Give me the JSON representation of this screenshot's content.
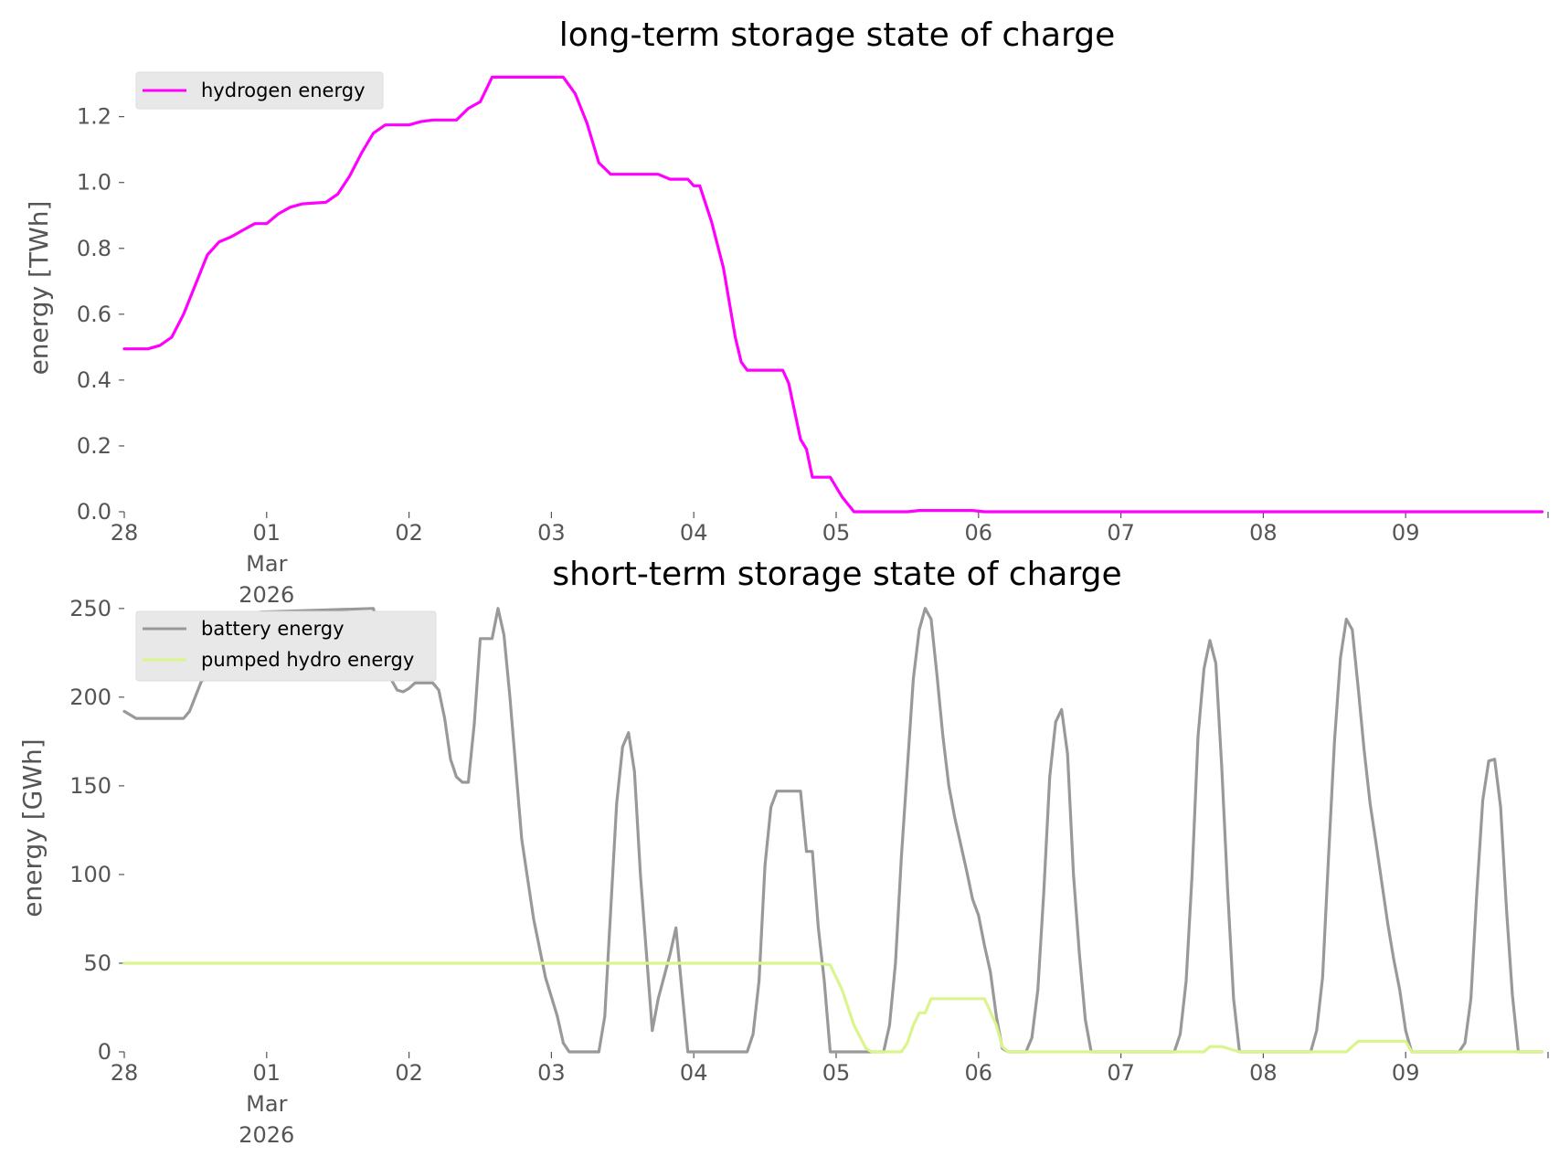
{
  "chart_data": [
    {
      "type": "line",
      "title": "long-term storage state of charge",
      "xlabel": "",
      "ylabel": "energy [TWh]",
      "xlim": [
        "2026-02-28 00:00",
        "2026-03-09 23:00"
      ],
      "ylim": [
        0,
        1.36
      ],
      "yticks": [
        0.0,
        0.2,
        0.4,
        0.6,
        0.8,
        1.0,
        1.2
      ],
      "ytick_labels": [
        "0.0",
        "0.2",
        "0.4",
        "0.6",
        "0.8",
        "1.0",
        "1.2"
      ],
      "xtick_labels": [
        "28",
        "01",
        "02",
        "03",
        "04",
        "05",
        "06",
        "07",
        "08",
        "09"
      ],
      "xtick_sub": [
        "Mar",
        "2026"
      ],
      "grid": false,
      "legend": "top-left",
      "series": [
        {
          "name": "hydrogen energy",
          "color": "#ff00ff",
          "points": [
            [
              "2026-02-28 00:00",
              0.495
            ],
            [
              "2026-02-28 04:00",
              0.495
            ],
            [
              "2026-02-28 06:00",
              0.505
            ],
            [
              "2026-02-28 08:00",
              0.53
            ],
            [
              "2026-02-28 10:00",
              0.6
            ],
            [
              "2026-02-28 12:00",
              0.69
            ],
            [
              "2026-02-28 14:00",
              0.78
            ],
            [
              "2026-02-28 16:00",
              0.82
            ],
            [
              "2026-02-28 18:00",
              0.835
            ],
            [
              "2026-02-28 20:00",
              0.855
            ],
            [
              "2026-02-28 22:00",
              0.875
            ],
            [
              "2026-03-01 00:00",
              0.875
            ],
            [
              "2026-03-01 02:00",
              0.905
            ],
            [
              "2026-03-01 04:00",
              0.925
            ],
            [
              "2026-03-01 06:00",
              0.935
            ],
            [
              "2026-03-01 10:00",
              0.94
            ],
            [
              "2026-03-01 12:00",
              0.965
            ],
            [
              "2026-03-01 14:00",
              1.02
            ],
            [
              "2026-03-01 16:00",
              1.09
            ],
            [
              "2026-03-01 18:00",
              1.15
            ],
            [
              "2026-03-01 20:00",
              1.175
            ],
            [
              "2026-03-02 00:00",
              1.175
            ],
            [
              "2026-03-02 02:00",
              1.185
            ],
            [
              "2026-03-02 04:00",
              1.19
            ],
            [
              "2026-03-02 08:00",
              1.19
            ],
            [
              "2026-03-02 10:00",
              1.225
            ],
            [
              "2026-03-02 12:00",
              1.245
            ],
            [
              "2026-03-02 14:00",
              1.32
            ],
            [
              "2026-03-03 02:00",
              1.32
            ],
            [
              "2026-03-03 04:00",
              1.27
            ],
            [
              "2026-03-03 06:00",
              1.18
            ],
            [
              "2026-03-03 08:00",
              1.06
            ],
            [
              "2026-03-03 10:00",
              1.025
            ],
            [
              "2026-03-03 18:00",
              1.025
            ],
            [
              "2026-03-03 20:00",
              1.01
            ],
            [
              "2026-03-03 23:00",
              1.01
            ],
            [
              "2026-03-04 00:00",
              0.99
            ],
            [
              "2026-03-04 01:00",
              0.99
            ],
            [
              "2026-03-04 03:00",
              0.88
            ],
            [
              "2026-03-04 05:00",
              0.74
            ],
            [
              "2026-03-04 07:00",
              0.53
            ],
            [
              "2026-03-04 08:00",
              0.455
            ],
            [
              "2026-03-04 09:00",
              0.43
            ],
            [
              "2026-03-04 15:00",
              0.43
            ],
            [
              "2026-03-04 16:00",
              0.39
            ],
            [
              "2026-03-04 18:00",
              0.22
            ],
            [
              "2026-03-04 19:00",
              0.19
            ],
            [
              "2026-03-04 20:00",
              0.105
            ],
            [
              "2026-03-04 23:00",
              0.105
            ],
            [
              "2026-03-05 01:00",
              0.045
            ],
            [
              "2026-03-05 03:00",
              0.0
            ],
            [
              "2026-03-05 12:00",
              0.0
            ],
            [
              "2026-03-05 14:00",
              0.004
            ],
            [
              "2026-03-05 23:00",
              0.004
            ],
            [
              "2026-03-06 01:00",
              0.0
            ],
            [
              "2026-03-09 23:00",
              0.0
            ]
          ]
        }
      ]
    },
    {
      "type": "line",
      "title": "short-term storage state of charge",
      "xlabel": "",
      "ylabel": "energy [GWh]",
      "xlim": [
        "2026-02-28 00:00",
        "2026-03-09 23:00"
      ],
      "ylim": [
        0,
        253
      ],
      "yticks": [
        0,
        50,
        100,
        150,
        200,
        250
      ],
      "ytick_labels": [
        "0",
        "50",
        "100",
        "150",
        "200",
        "250"
      ],
      "xtick_labels": [
        "28",
        "01",
        "02",
        "03",
        "04",
        "05",
        "06",
        "07",
        "08",
        "09"
      ],
      "xtick_sub": [
        "Mar",
        "2026"
      ],
      "grid": false,
      "legend": "top-left",
      "series": [
        {
          "name": "battery energy",
          "color": "#999999",
          "points": [
            [
              "2026-02-28 00:00",
              192
            ],
            [
              "2026-02-28 02:00",
              188
            ],
            [
              "2026-02-28 10:00",
              188
            ],
            [
              "2026-02-28 11:00",
              192
            ],
            [
              "2026-02-28 13:00",
              209
            ],
            [
              "2026-02-28 14:00",
              211
            ],
            [
              "2026-02-28 21:00",
              211
            ],
            [
              "2026-02-28 22:00",
              237
            ],
            [
              "2026-02-28 23:00",
              248
            ],
            [
              "2026-03-01 18:00",
              250
            ],
            [
              "2026-03-01 19:00",
              236
            ],
            [
              "2026-03-01 21:00",
              210
            ],
            [
              "2026-03-01 22:00",
              204
            ],
            [
              "2026-03-01 23:00",
              203
            ],
            [
              "2026-03-02 00:00",
              205
            ],
            [
              "2026-03-02 01:00",
              208
            ],
            [
              "2026-03-02 04:00",
              208
            ],
            [
              "2026-03-02 05:00",
              204
            ],
            [
              "2026-03-02 06:00",
              188
            ],
            [
              "2026-03-02 07:00",
              165
            ],
            [
              "2026-03-02 08:00",
              155
            ],
            [
              "2026-03-02 09:00",
              152
            ],
            [
              "2026-03-02 10:00",
              152
            ],
            [
              "2026-03-02 11:00",
              185
            ],
            [
              "2026-03-02 12:00",
              233
            ],
            [
              "2026-03-02 14:00",
              233
            ],
            [
              "2026-03-02 15:00",
              250
            ],
            [
              "2026-03-02 16:00",
              235
            ],
            [
              "2026-03-02 17:00",
              200
            ],
            [
              "2026-03-02 19:00",
              120
            ],
            [
              "2026-03-02 21:00",
              75
            ],
            [
              "2026-03-02 23:00",
              42
            ],
            [
              "2026-03-03 01:00",
              20
            ],
            [
              "2026-03-03 02:00",
              5
            ],
            [
              "2026-03-03 03:00",
              0
            ],
            [
              "2026-03-03 08:00",
              0
            ],
            [
              "2026-03-03 09:00",
              20
            ],
            [
              "2026-03-03 10:00",
              80
            ],
            [
              "2026-03-03 11:00",
              140
            ],
            [
              "2026-03-03 12:00",
              172
            ],
            [
              "2026-03-03 13:00",
              180
            ],
            [
              "2026-03-03 14:00",
              158
            ],
            [
              "2026-03-03 15:00",
              100
            ],
            [
              "2026-03-03 17:00",
              12
            ],
            [
              "2026-03-03 18:00",
              30
            ],
            [
              "2026-03-03 20:00",
              55
            ],
            [
              "2026-03-03 21:00",
              70
            ],
            [
              "2026-03-03 22:00",
              35
            ],
            [
              "2026-03-03 23:00",
              0
            ],
            [
              "2026-03-04 09:00",
              0
            ],
            [
              "2026-03-04 10:00",
              10
            ],
            [
              "2026-03-04 11:00",
              40
            ],
            [
              "2026-03-04 12:00",
              105
            ],
            [
              "2026-03-04 13:00",
              138
            ],
            [
              "2026-03-04 14:00",
              147
            ],
            [
              "2026-03-04 18:00",
              147
            ],
            [
              "2026-03-04 19:00",
              113
            ],
            [
              "2026-03-04 20:00",
              113
            ],
            [
              "2026-03-04 21:00",
              70
            ],
            [
              "2026-03-04 22:00",
              40
            ],
            [
              "2026-03-04 23:00",
              0
            ],
            [
              "2026-03-05 08:00",
              0
            ],
            [
              "2026-03-05 09:00",
              15
            ],
            [
              "2026-03-05 10:00",
              50
            ],
            [
              "2026-03-05 11:00",
              110
            ],
            [
              "2026-03-05 13:00",
              210
            ],
            [
              "2026-03-05 14:00",
              238
            ],
            [
              "2026-03-05 15:00",
              250
            ],
            [
              "2026-03-05 16:00",
              244
            ],
            [
              "2026-03-05 17:00",
              212
            ],
            [
              "2026-03-05 18:00",
              178
            ],
            [
              "2026-03-05 19:00",
              150
            ],
            [
              "2026-03-05 20:00",
              132
            ],
            [
              "2026-03-05 21:00",
              117
            ],
            [
              "2026-03-05 22:00",
              102
            ],
            [
              "2026-03-05 23:00",
              86
            ],
            [
              "2026-03-06 00:00",
              77
            ],
            [
              "2026-03-06 01:00",
              60
            ],
            [
              "2026-03-06 02:00",
              45
            ],
            [
              "2026-03-06 03:00",
              20
            ],
            [
              "2026-03-06 04:00",
              2
            ],
            [
              "2026-03-06 05:00",
              0
            ],
            [
              "2026-03-06 08:00",
              0
            ],
            [
              "2026-03-06 09:00",
              8
            ],
            [
              "2026-03-06 10:00",
              35
            ],
            [
              "2026-03-06 11:00",
              90
            ],
            [
              "2026-03-06 12:00",
              155
            ],
            [
              "2026-03-06 13:00",
              186
            ],
            [
              "2026-03-06 14:00",
              193
            ],
            [
              "2026-03-06 15:00",
              168
            ],
            [
              "2026-03-06 16:00",
              100
            ],
            [
              "2026-03-06 17:00",
              55
            ],
            [
              "2026-03-06 18:00",
              18
            ],
            [
              "2026-03-06 19:00",
              0
            ],
            [
              "2026-03-07 09:00",
              0
            ],
            [
              "2026-03-07 10:00",
              10
            ],
            [
              "2026-03-07 11:00",
              40
            ],
            [
              "2026-03-07 12:00",
              100
            ],
            [
              "2026-03-07 13:00",
              178
            ],
            [
              "2026-03-07 14:00",
              216
            ],
            [
              "2026-03-07 15:00",
              232
            ],
            [
              "2026-03-07 16:00",
              219
            ],
            [
              "2026-03-07 17:00",
              160
            ],
            [
              "2026-03-07 18:00",
              90
            ],
            [
              "2026-03-07 19:00",
              30
            ],
            [
              "2026-03-07 20:00",
              0
            ],
            [
              "2026-03-08 08:00",
              0
            ],
            [
              "2026-03-08 09:00",
              12
            ],
            [
              "2026-03-08 10:00",
              42
            ],
            [
              "2026-03-08 11:00",
              110
            ],
            [
              "2026-03-08 12:00",
              175
            ],
            [
              "2026-03-08 13:00",
              222
            ],
            [
              "2026-03-08 14:00",
              244
            ],
            [
              "2026-03-08 15:00",
              238
            ],
            [
              "2026-03-08 16:00",
              205
            ],
            [
              "2026-03-08 17:00",
              170
            ],
            [
              "2026-03-08 18:00",
              140
            ],
            [
              "2026-03-08 19:00",
              118
            ],
            [
              "2026-03-08 20:00",
              95
            ],
            [
              "2026-03-08 21:00",
              72
            ],
            [
              "2026-03-08 22:00",
              52
            ],
            [
              "2026-03-08 23:00",
              35
            ],
            [
              "2026-03-09 00:00",
              12
            ],
            [
              "2026-03-09 01:00",
              0
            ],
            [
              "2026-03-09 09:00",
              0
            ],
            [
              "2026-03-09 10:00",
              5
            ],
            [
              "2026-03-09 11:00",
              30
            ],
            [
              "2026-03-09 12:00",
              90
            ],
            [
              "2026-03-09 13:00",
              142
            ],
            [
              "2026-03-09 14:00",
              164
            ],
            [
              "2026-03-09 15:00",
              165
            ],
            [
              "2026-03-09 16:00",
              138
            ],
            [
              "2026-03-09 17:00",
              80
            ],
            [
              "2026-03-09 18:00",
              32
            ],
            [
              "2026-03-09 19:00",
              0
            ],
            [
              "2026-03-09 23:00",
              0
            ]
          ]
        },
        {
          "name": "pumped hydro energy",
          "color": "#d9f58c",
          "points": [
            [
              "2026-02-28 00:00",
              50
            ],
            [
              "2026-03-04 21:00",
              50
            ],
            [
              "2026-03-04 23:00",
              49
            ],
            [
              "2026-03-05 01:00",
              35
            ],
            [
              "2026-03-05 03:00",
              15
            ],
            [
              "2026-03-05 05:00",
              2
            ],
            [
              "2026-03-05 06:00",
              0
            ],
            [
              "2026-03-05 11:00",
              0
            ],
            [
              "2026-03-05 12:00",
              5
            ],
            [
              "2026-03-05 13:00",
              15
            ],
            [
              "2026-03-05 14:00",
              22
            ],
            [
              "2026-03-05 15:00",
              22
            ],
            [
              "2026-03-05 16:00",
              30
            ],
            [
              "2026-03-06 01:00",
              30
            ],
            [
              "2026-03-06 03:00",
              15
            ],
            [
              "2026-03-06 04:00",
              3
            ],
            [
              "2026-03-06 05:00",
              0
            ],
            [
              "2026-03-07 14:00",
              0
            ],
            [
              "2026-03-07 15:00",
              3
            ],
            [
              "2026-03-07 17:00",
              3
            ],
            [
              "2026-03-07 19:00",
              1
            ],
            [
              "2026-03-07 20:00",
              0
            ],
            [
              "2026-03-08 14:00",
              0
            ],
            [
              "2026-03-08 16:00",
              6
            ],
            [
              "2026-03-09 00:00",
              6
            ],
            [
              "2026-03-09 01:00",
              0
            ],
            [
              "2026-03-09 23:00",
              0
            ]
          ]
        }
      ]
    }
  ]
}
